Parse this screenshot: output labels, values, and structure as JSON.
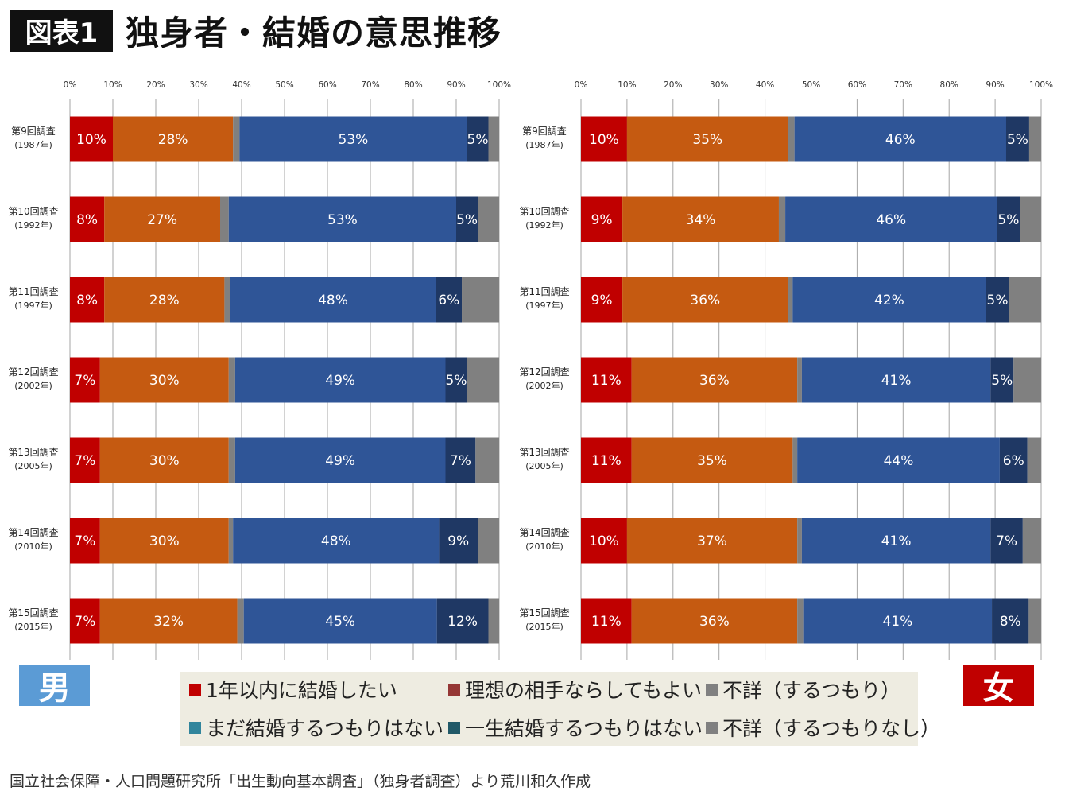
{
  "header": {
    "badge": "図表1",
    "title": "独身者・結婚の意思推移"
  },
  "sex_labels": {
    "male": "男",
    "female": "女"
  },
  "legend": [
    {
      "label": "1年以内に結婚したい",
      "color": "#c00000"
    },
    {
      "label": "理想の相手ならしてもよい",
      "color": "#953735"
    },
    {
      "label": "不詳（するつもり）",
      "color": "#808080"
    },
    {
      "label": "まだ結婚するつもりはない",
      "color": "#31859c"
    },
    {
      "label": "一生結婚するつもりはない",
      "color": "#215968"
    },
    {
      "label": "不詳（するつもりなし）",
      "color": "#808080"
    }
  ],
  "footer": "国立社会保障・人口問題研究所「出生動向基本調査」（独身者調査）より荒川和久作成",
  "chart_data": [
    {
      "type": "bar",
      "orientation": "horizontal",
      "stacked": "percent",
      "panel": "男",
      "xlim": [
        0,
        100
      ],
      "grid": true,
      "x_ticks": [
        "0%",
        "10%",
        "20%",
        "30%",
        "40%",
        "50%",
        "60%",
        "70%",
        "80%",
        "90%",
        "100%"
      ],
      "categories": [
        [
          "第9回調査",
          "(1987年)"
        ],
        [
          "第10回調査",
          "(1992年)"
        ],
        [
          "第11回調査",
          "(1997年)"
        ],
        [
          "第12回調査",
          "(2002年)"
        ],
        [
          "第13回調査",
          "(2005年)"
        ],
        [
          "第14回調査",
          "(2010年)"
        ],
        [
          "第15回調査",
          "(2015年)"
        ]
      ],
      "segment_colors": [
        "#c00000",
        "#c55a11",
        "#808080",
        "#2f5597",
        "#1f3864",
        "#808080"
      ],
      "labeled_segments": [
        0,
        1,
        3,
        4
      ],
      "rows": [
        [
          10,
          28,
          1.5,
          53,
          5,
          2.5
        ],
        [
          8,
          27,
          2,
          53,
          5,
          5
        ],
        [
          8,
          28,
          1.3,
          48,
          6,
          8.7
        ],
        [
          7,
          30,
          1.5,
          49,
          5,
          7.5
        ],
        [
          7,
          30,
          1.5,
          49,
          7,
          5.5
        ],
        [
          7,
          30,
          1,
          48,
          9,
          5
        ],
        [
          7,
          32,
          1.5,
          45,
          12,
          2.5
        ]
      ]
    },
    {
      "type": "bar",
      "orientation": "horizontal",
      "stacked": "percent",
      "panel": "女",
      "xlim": [
        0,
        100
      ],
      "grid": true,
      "x_ticks": [
        "0%",
        "10%",
        "20%",
        "30%",
        "40%",
        "50%",
        "60%",
        "70%",
        "80%",
        "90%",
        "100%"
      ],
      "categories": [
        [
          "第9回調査",
          "(1987年)"
        ],
        [
          "第10回調査",
          "(1992年)"
        ],
        [
          "第11回調査",
          "(1997年)"
        ],
        [
          "第12回調査",
          "(2002年)"
        ],
        [
          "第13回調査",
          "(2005年)"
        ],
        [
          "第14回調査",
          "(2010年)"
        ],
        [
          "第15回調査",
          "(2015年)"
        ]
      ],
      "segment_colors": [
        "#c00000",
        "#c55a11",
        "#808080",
        "#2f5597",
        "#1f3864",
        "#808080"
      ],
      "labeled_segments": [
        0,
        1,
        3,
        4
      ],
      "rows": [
        [
          10,
          35,
          1.4,
          46,
          5,
          2.6
        ],
        [
          9,
          34,
          1.4,
          46,
          5,
          4.6
        ],
        [
          9,
          36,
          1,
          42,
          5,
          7
        ],
        [
          11,
          36,
          1,
          41,
          5,
          6
        ],
        [
          11,
          35,
          1,
          44,
          6,
          3
        ],
        [
          10,
          37,
          1,
          41,
          7,
          4
        ],
        [
          11,
          36,
          1.3,
          41,
          8,
          2.7
        ]
      ]
    }
  ]
}
